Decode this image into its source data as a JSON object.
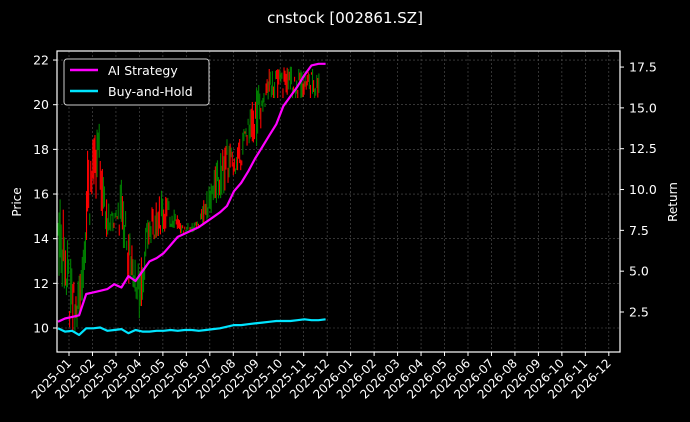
{
  "chart_data": {
    "type": "line",
    "title": "cnstock [002861.SZ]",
    "xlabel": "",
    "ylabel": "Price",
    "ylabel_right": "Return",
    "ylim": [
      9.0,
      22.3
    ],
    "ylim_right": [
      0.6,
      18.5
    ],
    "yticks": [
      "10",
      "12",
      "14",
      "16",
      "18",
      "20",
      "22"
    ],
    "yticks_right": [
      "2.5",
      "5.0",
      "7.5",
      "10.0",
      "12.5",
      "15.0",
      "17.5"
    ],
    "xticks": [
      "2025-01",
      "2025-02",
      "2025-03",
      "2025-04",
      "2025-05",
      "2025-06",
      "2025-07",
      "2025-08",
      "2025-09",
      "2025-10",
      "2025-11",
      "2025-12",
      "2026-01",
      "2026-02",
      "2026-03",
      "2026-04",
      "2026-05",
      "2026-06",
      "2026-07",
      "2026-08",
      "2026-09",
      "2026-10",
      "2026-11",
      "2026-12"
    ],
    "grid": true,
    "legend_position": "upper left",
    "legend": [
      "AI Strategy",
      "Buy-and-Hold"
    ],
    "colors": {
      "background": "#000000",
      "ai_strategy": "#ff00ff",
      "buy_and_hold": "#00e5ff",
      "candle_up": "#008000",
      "candle_down": "#ff0000",
      "grid": "#555555"
    },
    "price_series": {
      "name": "Price (candles)",
      "x_months": [
        0.0,
        0.25,
        0.5,
        0.75,
        1.0,
        1.25,
        1.5,
        1.75,
        2.0,
        2.25,
        2.5,
        2.75,
        3.0,
        3.25,
        3.5,
        3.75,
        4.0,
        4.25,
        4.5,
        4.75,
        5.0,
        5.25,
        5.5,
        5.75,
        6.0,
        6.25,
        6.5,
        6.75,
        7.0,
        7.25,
        7.5,
        7.75,
        8.0,
        8.25,
        8.5,
        8.75,
        9.0,
        9.25,
        9.5,
        9.75,
        10.0,
        10.25,
        10.5,
        10.75,
        11.0,
        11.25,
        11.5
      ],
      "high": [
        16.2,
        15.2,
        13.4,
        11.5,
        12.9,
        18.7,
        18.4,
        19.2,
        16.3,
        15.2,
        15.3,
        17.1,
        14.6,
        13.1,
        12.8,
        14.6,
        15.4,
        15.7,
        16.4,
        15.6,
        15.4,
        14.6,
        14.7,
        14.7,
        14.8,
        15.9,
        16.5,
        17.4,
        18.0,
        18.6,
        17.6,
        18.5,
        19.1,
        20.0,
        21.0,
        20.4,
        21.6,
        21.5,
        21.7,
        21.8,
        21.7,
        21.6,
        21.6,
        21.6,
        21.6,
        21.6,
        21.6
      ],
      "low": [
        12.5,
        11.6,
        10.0,
        9.8,
        10.8,
        13.9,
        15.6,
        16.0,
        14.0,
        14.3,
        14.4,
        13.8,
        12.0,
        11.8,
        9.8,
        12.9,
        13.9,
        14.1,
        14.3,
        14.4,
        14.5,
        14.2,
        14.2,
        14.3,
        14.4,
        14.7,
        15.1,
        15.6,
        15.9,
        16.4,
        16.9,
        16.9,
        18.1,
        18.4,
        18.1,
        19.6,
        20.3,
        20.3,
        20.3,
        20.3,
        20.3,
        20.3,
        20.3,
        20.3,
        20.3,
        20.3,
        20.3
      ]
    },
    "series": [
      {
        "name": "AI Strategy",
        "axis": "right",
        "x_months": [
          0.0,
          0.3,
          0.6,
          0.9,
          1.2,
          1.5,
          1.8,
          2.1,
          2.4,
          2.7,
          3.0,
          3.3,
          3.6,
          3.9,
          4.2,
          4.5,
          4.8,
          5.1,
          5.4,
          5.7,
          6.0,
          6.3,
          6.6,
          6.9,
          7.2,
          7.5,
          7.8,
          8.1,
          8.4,
          8.7,
          9.0,
          9.3,
          9.6,
          9.9,
          10.2,
          10.5,
          10.8,
          11.1,
          11.4
        ],
        "values": [
          1.9,
          2.1,
          2.2,
          2.3,
          3.6,
          3.7,
          3.8,
          3.9,
          4.2,
          4.0,
          4.7,
          4.4,
          5.0,
          5.6,
          5.8,
          6.1,
          6.6,
          7.1,
          7.3,
          7.5,
          7.7,
          8.0,
          8.3,
          8.6,
          9.0,
          9.9,
          10.4,
          11.1,
          11.9,
          12.6,
          13.3,
          14.0,
          15.1,
          15.7,
          16.3,
          17.0,
          17.6,
          17.7,
          17.7
        ]
      },
      {
        "name": "Buy-and-Hold",
        "axis": "right",
        "x_months": [
          0.0,
          0.3,
          0.6,
          0.9,
          1.2,
          1.5,
          1.8,
          2.1,
          2.4,
          2.7,
          3.0,
          3.3,
          3.6,
          3.9,
          4.2,
          4.5,
          4.8,
          5.1,
          5.4,
          5.7,
          6.0,
          6.3,
          6.6,
          6.9,
          7.2,
          7.5,
          7.8,
          8.1,
          8.4,
          8.7,
          9.0,
          9.3,
          9.6,
          9.9,
          10.2,
          10.5,
          10.8,
          11.1,
          11.4
        ],
        "values": [
          1.5,
          1.3,
          1.35,
          1.1,
          1.5,
          1.5,
          1.55,
          1.35,
          1.4,
          1.45,
          1.2,
          1.4,
          1.3,
          1.3,
          1.35,
          1.35,
          1.4,
          1.35,
          1.4,
          1.4,
          1.35,
          1.4,
          1.45,
          1.5,
          1.6,
          1.7,
          1.7,
          1.75,
          1.8,
          1.85,
          1.9,
          1.95,
          1.95,
          1.95,
          2.0,
          2.05,
          2.0,
          2.0,
          2.05
        ]
      }
    ]
  }
}
